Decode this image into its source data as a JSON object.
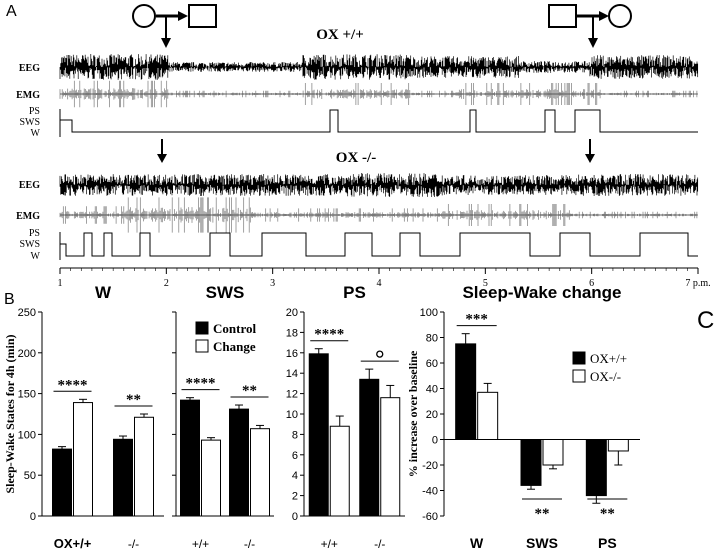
{
  "panel_letters": {
    "a": "A",
    "b": "B",
    "c": "C"
  },
  "trace_block": {
    "top_title": "OX +/+",
    "bottom_title": "OX -/-",
    "row_labels": {
      "eeg": "EEG",
      "emg": "EMG",
      "ps": "PS",
      "sws": "SWS",
      "w": "W"
    },
    "time_ticks": [
      "1",
      "2",
      "3",
      "4",
      "5",
      "6",
      "7 p.m."
    ]
  },
  "colors": {
    "control": "#000000",
    "change": "#ffffff",
    "trace": "#000000",
    "emg_trace": "#7a7a7a"
  },
  "chart_data": [
    {
      "type": "bar",
      "title": "W",
      "ylabel": "Sleep-Wake States for 4h (min)",
      "ylim": [
        0,
        250
      ],
      "yticks": [
        0,
        50,
        100,
        150,
        200,
        250
      ],
      "categories": [
        "OX+/+",
        "-/-"
      ],
      "series": [
        {
          "name": "Control",
          "values": [
            82,
            94
          ],
          "errors": [
            3,
            4
          ]
        },
        {
          "name": "Change",
          "values": [
            139,
            121
          ],
          "errors": [
            4,
            4
          ]
        }
      ],
      "annotations": [
        "****",
        "**"
      ]
    },
    {
      "type": "bar",
      "title": "SWS",
      "ylim": [
        0,
        250
      ],
      "categories": [
        "+/+",
        "-/-"
      ],
      "legend": [
        "Control",
        "Change"
      ],
      "series": [
        {
          "name": "Control",
          "values": [
            142,
            131
          ],
          "errors": [
            3,
            5
          ]
        },
        {
          "name": "Change",
          "values": [
            93,
            107
          ],
          "errors": [
            3,
            4
          ]
        }
      ],
      "annotations": [
        "****",
        "**"
      ]
    },
    {
      "type": "bar",
      "title": "PS",
      "ylim": [
        0,
        20
      ],
      "yticks": [
        0,
        2,
        4,
        6,
        8,
        10,
        12,
        14,
        16,
        18,
        20
      ],
      "categories": [
        "+/+",
        "-/-"
      ],
      "series": [
        {
          "name": "Control",
          "values": [
            15.9,
            13.4
          ],
          "errors": [
            0.5,
            1.0
          ]
        },
        {
          "name": "Change",
          "values": [
            8.8,
            11.6
          ],
          "errors": [
            1.0,
            1.2
          ]
        }
      ],
      "annotations": [
        "****",
        "°"
      ]
    },
    {
      "type": "bar",
      "title": "Sleep-Wake change",
      "ylabel": "% increase over baseline",
      "ylim": [
        -60,
        100
      ],
      "yticks": [
        -60,
        -40,
        -20,
        0,
        20,
        40,
        60,
        80,
        100
      ],
      "categories": [
        "W",
        "SWS",
        "PS"
      ],
      "legend": [
        "OX+/+",
        "OX-/-"
      ],
      "series": [
        {
          "name": "OX+/+",
          "values": [
            75,
            -36,
            -44
          ],
          "errors": [
            8,
            3,
            6
          ]
        },
        {
          "name": "OX-/-",
          "values": [
            37,
            -20,
            -9
          ],
          "errors": [
            7,
            3,
            11
          ]
        }
      ],
      "annotations": [
        "***",
        "**",
        "**"
      ]
    }
  ]
}
